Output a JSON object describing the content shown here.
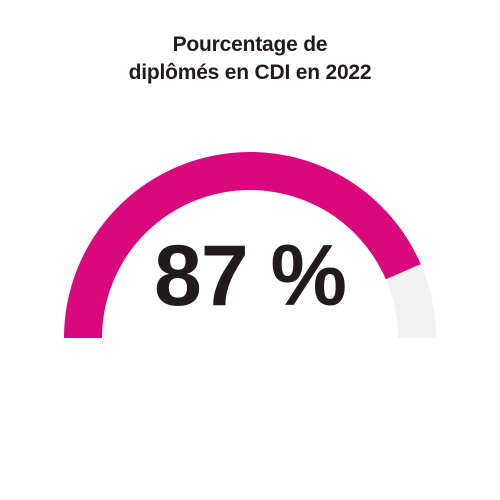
{
  "chart_data": {
    "type": "gauge",
    "title_lines": [
      "Pourcentage de",
      "diplômés en CDI en 2022"
    ],
    "value": 87,
    "max": 100,
    "unit": "%",
    "display_value": "87 %",
    "colors": {
      "filled": "#d9087c",
      "track": "#f2f2f2",
      "text": "#231a1e"
    }
  }
}
